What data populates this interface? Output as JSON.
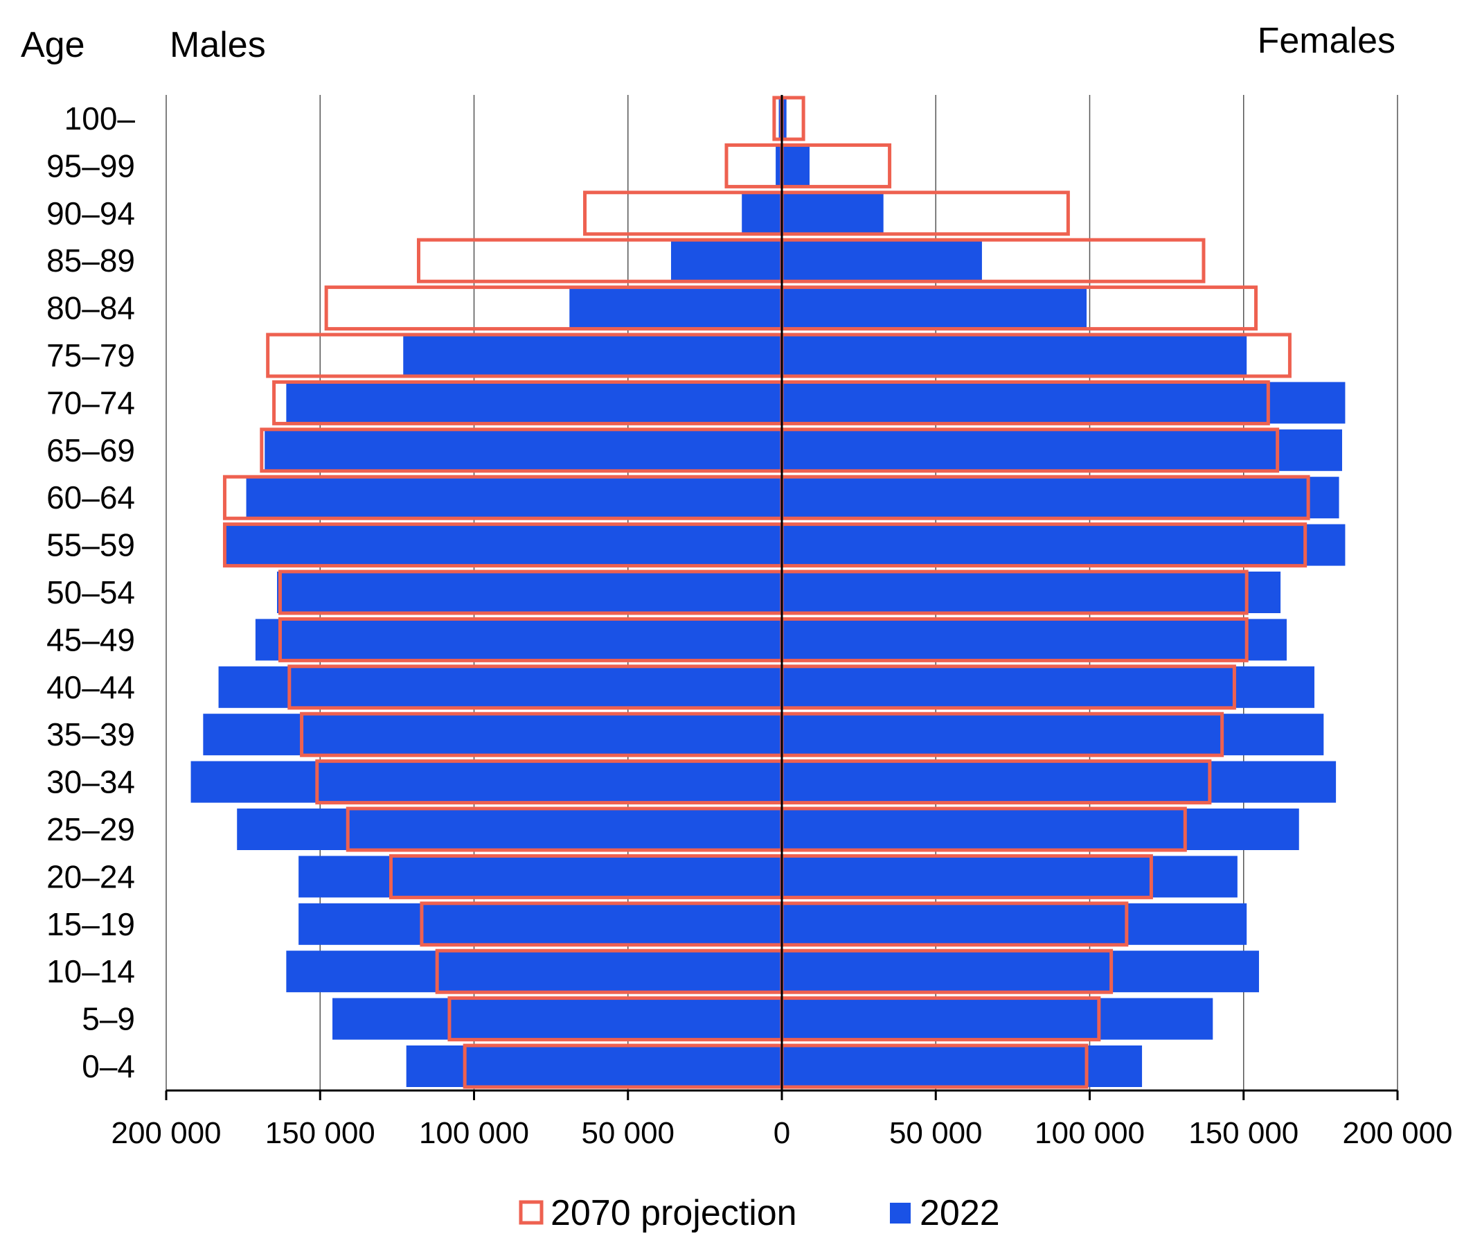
{
  "header": {
    "age_label": "Age",
    "males_label": "Males",
    "females_label": "Females"
  },
  "colors": {
    "series_2022": "#1a52e6",
    "series_2070": "#ee6150",
    "grid": "#555555",
    "axis": "#000000"
  },
  "chart_data": {
    "type": "bar",
    "orientation": "horizontal",
    "layout": "population-pyramid",
    "categories": [
      "100–",
      "95–99",
      "90–94",
      "85–89",
      "80–84",
      "75–79",
      "70–74",
      "65–69",
      "60–64",
      "55–59",
      "50–54",
      "45–49",
      "40–44",
      "35–39",
      "30–34",
      "25–29",
      "20–24",
      "15–19",
      "10–14",
      "5–9",
      "0–4"
    ],
    "xlim": [
      -200000,
      200000
    ],
    "x_ticks": [
      -200000,
      -150000,
      -100000,
      -50000,
      0,
      50000,
      100000,
      150000,
      200000
    ],
    "x_tick_labels": [
      "200 000",
      "150 000",
      "100 000",
      "50 000",
      "0",
      "50 000",
      "100 000",
      "150 000",
      "200 000"
    ],
    "grid": true,
    "legend_position": "bottom-center",
    "series": [
      {
        "name": "2070 projection",
        "style": "outline",
        "males": [
          2500,
          18000,
          64000,
          118000,
          148000,
          167000,
          165000,
          169000,
          181000,
          181000,
          163000,
          163000,
          160000,
          156000,
          151000,
          141000,
          127000,
          117000,
          112000,
          108000,
          103000
        ],
        "females": [
          7000,
          35000,
          93000,
          137000,
          154000,
          165000,
          158000,
          161000,
          171000,
          170000,
          151000,
          151000,
          147000,
          143000,
          139000,
          131000,
          120000,
          112000,
          107000,
          103000,
          99000
        ]
      },
      {
        "name": "2022",
        "style": "filled",
        "males": [
          1000,
          2000,
          13000,
          36000,
          69000,
          123000,
          161000,
          168000,
          174000,
          181000,
          164000,
          171000,
          183000,
          188000,
          192000,
          177000,
          157000,
          157000,
          161000,
          146000,
          122000
        ],
        "females": [
          1500,
          9000,
          33000,
          65000,
          99000,
          151000,
          183000,
          182000,
          181000,
          183000,
          162000,
          164000,
          173000,
          176000,
          180000,
          168000,
          148000,
          151000,
          155000,
          140000,
          117000
        ]
      }
    ]
  },
  "legend": {
    "items": [
      {
        "label": "2070 projection",
        "style": "outline"
      },
      {
        "label": "2022",
        "style": "filled"
      }
    ]
  }
}
